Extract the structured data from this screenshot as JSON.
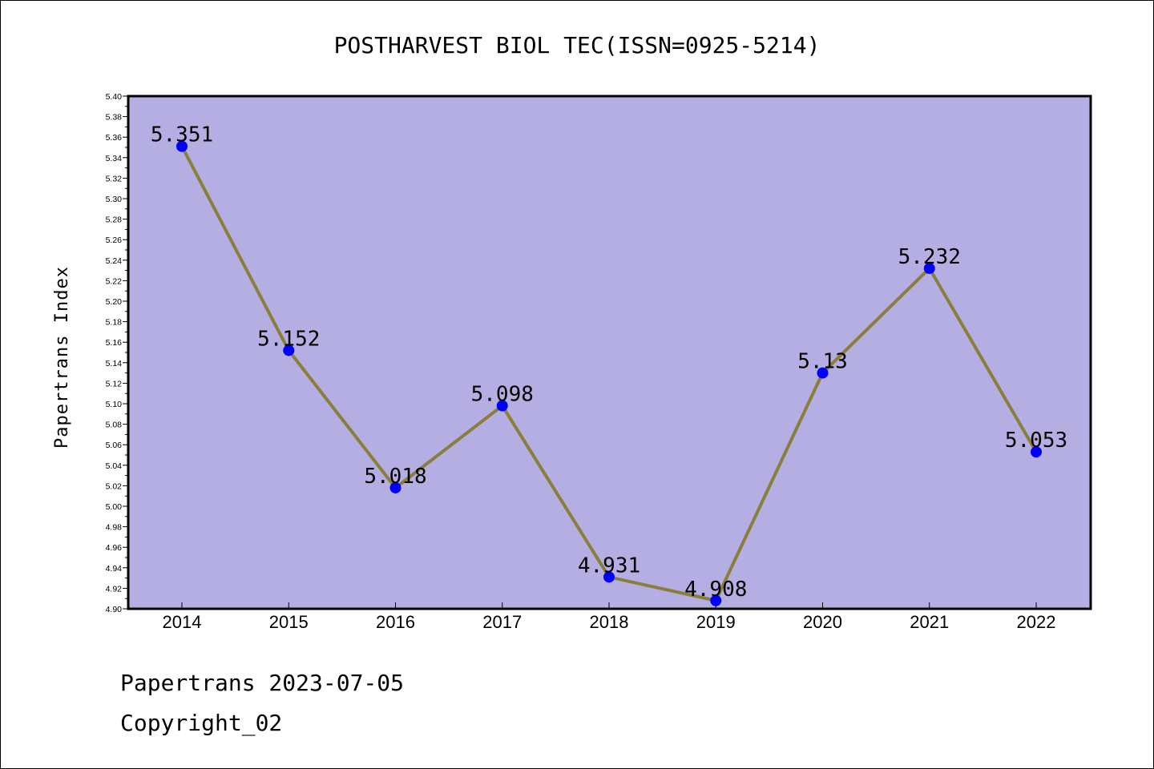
{
  "chart_data": {
    "type": "line",
    "title": "POSTHARVEST BIOL TEC(ISSN=0925-5214)",
    "xlabel": "",
    "ylabel": "Papertrans Index",
    "categories": [
      "2014",
      "2015",
      "2016",
      "2017",
      "2018",
      "2019",
      "2020",
      "2021",
      "2022"
    ],
    "series": [
      {
        "values": [
          5.351,
          5.152,
          5.018,
          5.098,
          4.931,
          4.908,
          5.13,
          5.232,
          5.053
        ],
        "data_labels": [
          "5.351",
          "5.152",
          "5.018",
          "5.098",
          "4.931",
          "4.908",
          "5.13",
          "5.232",
          "5.053"
        ]
      }
    ],
    "ylim": [
      4.9,
      5.4
    ],
    "ytick_labels": [
      "4.90",
      "4.92",
      "4.94",
      "4.96",
      "4.98",
      "5.00",
      "5.02",
      "5.04",
      "5.06",
      "5.08",
      "5.10",
      "5.12",
      "5.14",
      "5.16",
      "5.18",
      "5.20",
      "5.22",
      "5.24",
      "5.26",
      "5.28",
      "5.30",
      "5.32",
      "5.34",
      "5.36",
      "5.38",
      "5.40"
    ],
    "grid": false,
    "colors": {
      "plot_background": "#b4aee2",
      "line": "#8b7d3a",
      "marker": "#0000ff"
    }
  },
  "footer": {
    "date_line": "Papertrans 2023-07-05",
    "copyright": "Copyright_02"
  }
}
